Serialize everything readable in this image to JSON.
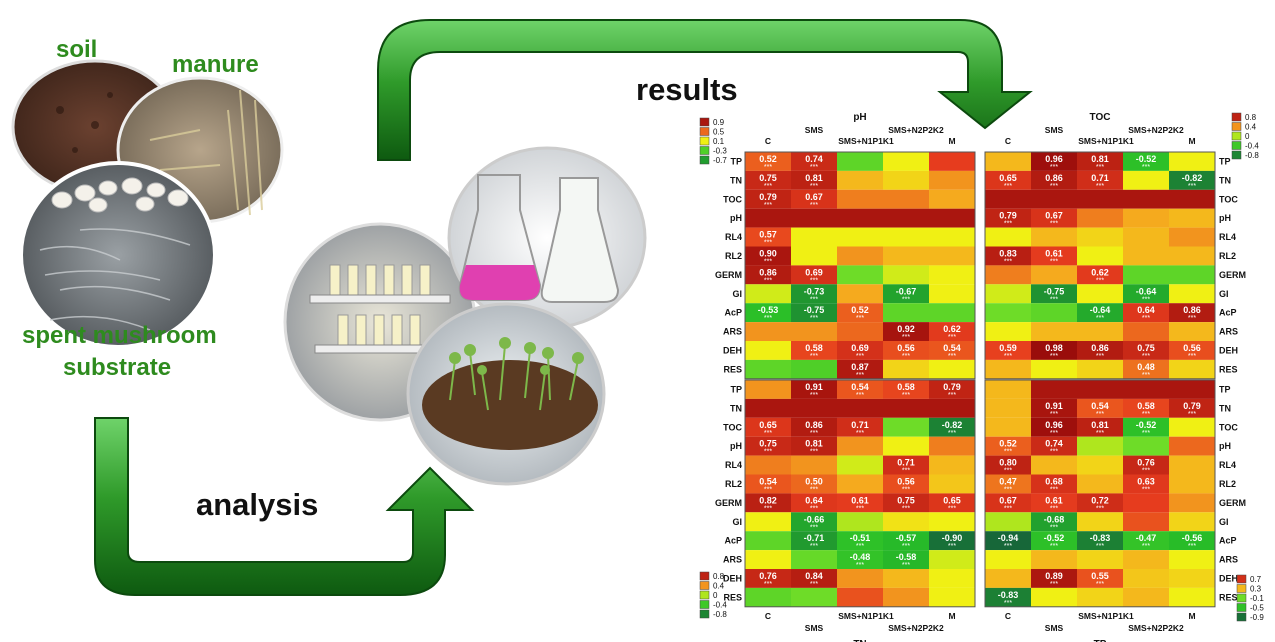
{
  "labels": {
    "soil": "soil",
    "manure": "manure",
    "sms_line1": "spent mushroom",
    "sms_line2": "substrate",
    "results": "results",
    "analysis": "analysis"
  },
  "chart_data": {
    "type": "heatmap",
    "rows": [
      "TP",
      "TN",
      "TOC",
      "pH",
      "RL4",
      "RL2",
      "GERM",
      "GI",
      "AcP",
      "ARS",
      "DEH",
      "RES"
    ],
    "columns": [
      "C",
      "SMS",
      "SMS+N1P1K1",
      "SMS+N2P2K2",
      "M"
    ],
    "panels": [
      {
        "title": "pH",
        "title_pos": "top",
        "legend": [
          0.9,
          0.5,
          0.1,
          -0.3,
          -0.7
        ],
        "legend_side": "top-left",
        "values": [
          [
            0.52,
            0.74,
            -0.2,
            0.1,
            0.6
          ],
          [
            0.75,
            0.81,
            0.3,
            0.2,
            0.4
          ],
          [
            0.79,
            0.67,
            0.45,
            0.45,
            0.35
          ],
          [
            0.9,
            0.9,
            0.9,
            0.9,
            0.9
          ],
          [
            0.57,
            0.1,
            0.1,
            0.1,
            0.1
          ],
          [
            0.9,
            0.1,
            0.4,
            0.3,
            0.3
          ],
          [
            0.86,
            0.69,
            -0.1,
            0.05,
            0.1
          ],
          [
            0.05,
            -0.73,
            0.35,
            -0.67,
            0.1
          ],
          [
            -0.53,
            -0.75,
            0.52,
            -0.2,
            -0.2
          ],
          [
            0.4,
            0.4,
            0.5,
            0.92,
            0.62
          ],
          [
            0.1,
            0.58,
            0.69,
            0.56,
            0.54
          ],
          [
            -0.2,
            -0.3,
            0.87,
            0.2,
            0.1
          ]
        ],
        "annotations": [
          [
            "0.52",
            "0.74",
            "",
            "",
            ""
          ],
          [
            "0.75",
            "0.81",
            "",
            "",
            ""
          ],
          [
            "0.79",
            "0.67",
            "",
            "",
            ""
          ],
          [
            "",
            "",
            "",
            "",
            ""
          ],
          [
            "0.57",
            "",
            "",
            "",
            ""
          ],
          [
            "0.90",
            "",
            "",
            "",
            ""
          ],
          [
            "0.86",
            "0.69",
            "",
            "",
            ""
          ],
          [
            "",
            "-0.73",
            "",
            "-0.67",
            ""
          ],
          [
            "-0.53",
            "-0.75",
            "0.52",
            "",
            ""
          ],
          [
            "",
            "",
            "",
            "0.92",
            "0.62"
          ],
          [
            "",
            "0.58",
            "0.69",
            "0.56",
            "0.54"
          ],
          [
            "",
            "",
            "0.87",
            "",
            ""
          ]
        ]
      },
      {
        "title": "TOC",
        "title_pos": "top",
        "legend": [
          0.8,
          0.4,
          0,
          -0.4,
          -0.8
        ],
        "legend_side": "top-right",
        "values": [
          [
            0.3,
            0.96,
            0.81,
            -0.52,
            0.1
          ],
          [
            0.65,
            0.86,
            0.71,
            0.1,
            -0.82
          ],
          [
            0.9,
            0.9,
            0.9,
            0.9,
            0.9
          ],
          [
            0.79,
            0.67,
            0.45,
            0.35,
            0.3
          ],
          [
            0.1,
            0.3,
            0.2,
            0.3,
            0.4
          ],
          [
            0.83,
            0.61,
            0.1,
            0.3,
            0.3
          ],
          [
            0.45,
            0.35,
            0.62,
            -0.2,
            -0.2
          ],
          [
            0.05,
            -0.75,
            0.1,
            -0.64,
            0.1
          ],
          [
            -0.1,
            -0.2,
            -0.64,
            0.64,
            0.86
          ],
          [
            0.1,
            0.3,
            0.3,
            0.5,
            0.3
          ],
          [
            0.59,
            0.98,
            0.86,
            0.75,
            0.56
          ],
          [
            0.3,
            0.1,
            0.2,
            0.48,
            0.2
          ]
        ],
        "annotations": [
          [
            "",
            "0.96",
            "0.81",
            "-0.52",
            ""
          ],
          [
            "0.65",
            "0.86",
            "0.71",
            "",
            "-0.82"
          ],
          [
            "",
            "",
            "",
            "",
            ""
          ],
          [
            "0.79",
            "0.67",
            "",
            "",
            ""
          ],
          [
            "",
            "",
            "",
            "",
            ""
          ],
          [
            "0.83",
            "0.61",
            "",
            "",
            ""
          ],
          [
            "",
            "",
            "0.62",
            "",
            ""
          ],
          [
            "",
            "-0.75",
            "",
            "-0.64",
            ""
          ],
          [
            "",
            "",
            "-0.64",
            "0.64",
            "0.86"
          ],
          [
            "",
            "",
            "",
            "",
            ""
          ],
          [
            "0.59",
            "0.98",
            "0.86",
            "0.75",
            "0.56"
          ],
          [
            "",
            "",
            "",
            "0.48",
            ""
          ]
        ]
      },
      {
        "title": "TN",
        "title_pos": "bottom",
        "legend": [
          0.8,
          0.4,
          0,
          -0.4,
          -0.8
        ],
        "legend_side": "bottom-left",
        "values": [
          [
            0.4,
            0.91,
            0.54,
            0.58,
            0.79
          ],
          [
            0.9,
            0.9,
            0.9,
            0.9,
            0.9
          ],
          [
            0.65,
            0.86,
            0.71,
            -0.1,
            -0.82
          ],
          [
            0.75,
            0.81,
            0.4,
            0.1,
            0.45
          ],
          [
            0.45,
            0.4,
            0.05,
            0.71,
            0.3
          ],
          [
            0.54,
            0.5,
            0.35,
            0.56,
            0.25
          ],
          [
            0.82,
            0.64,
            0.61,
            0.75,
            0.65
          ],
          [
            0.1,
            -0.66,
            0.0,
            0.15,
            0.1
          ],
          [
            -0.2,
            -0.71,
            -0.51,
            -0.57,
            -0.9
          ],
          [
            0.1,
            -0.15,
            -0.48,
            -0.58,
            0.05
          ],
          [
            0.76,
            0.84,
            0.4,
            0.3,
            0.1
          ],
          [
            -0.2,
            -0.1,
            0.55,
            0.4,
            0.1
          ]
        ],
        "annotations": [
          [
            "",
            "0.91",
            "0.54",
            "0.58",
            "0.79"
          ],
          [
            "",
            "",
            "",
            "",
            ""
          ],
          [
            "0.65",
            "0.86",
            "0.71",
            "",
            "-0.82"
          ],
          [
            "0.75",
            "0.81",
            "",
            "",
            ""
          ],
          [
            "",
            "",
            "",
            "0.71",
            ""
          ],
          [
            "0.54",
            "0.50",
            "",
            "0.56",
            ""
          ],
          [
            "0.82",
            "0.64",
            "0.61",
            "0.75",
            "0.65"
          ],
          [
            "",
            "-0.66",
            "",
            "",
            ""
          ],
          [
            "",
            "-0.71",
            "-0.51",
            "-0.57",
            "-0.90"
          ],
          [
            "",
            "",
            "-0.48",
            "-0.58",
            ""
          ],
          [
            "0.76",
            "0.84",
            "",
            "",
            ""
          ],
          [
            "",
            "",
            "",
            "",
            ""
          ]
        ]
      },
      {
        "title": "TP",
        "title_pos": "bottom",
        "legend": [
          0.7,
          0.3,
          -0.1,
          -0.5,
          -0.9
        ],
        "legend_side": "bottom-right",
        "values": [
          [
            0.3,
            0.9,
            0.9,
            0.9,
            0.9
          ],
          [
            0.3,
            0.91,
            0.54,
            0.58,
            0.79
          ],
          [
            0.3,
            0.96,
            0.81,
            -0.52,
            0.1
          ],
          [
            0.52,
            0.74,
            0.0,
            -0.1,
            0.5
          ],
          [
            0.8,
            0.3,
            0.2,
            0.76,
            0.3
          ],
          [
            0.47,
            0.68,
            0.3,
            0.63,
            0.3
          ],
          [
            0.67,
            0.61,
            0.72,
            0.6,
            0.4
          ],
          [
            0.0,
            -0.68,
            0.2,
            0.55,
            0.2
          ],
          [
            -0.94,
            -0.52,
            -0.83,
            -0.47,
            -0.56
          ],
          [
            0.1,
            0.3,
            0.2,
            0.3,
            0.1
          ],
          [
            0.3,
            0.89,
            0.55,
            0.25,
            0.2
          ],
          [
            -0.83,
            0.1,
            0.2,
            0.3,
            0.1
          ]
        ],
        "annotations": [
          [
            "",
            "",
            "",
            "",
            ""
          ],
          [
            "",
            "0.91",
            "0.54",
            "0.58",
            "0.79"
          ],
          [
            "",
            "0.96",
            "0.81",
            "-0.52",
            ""
          ],
          [
            "0.52",
            "0.74",
            "",
            "",
            ""
          ],
          [
            "0.80",
            "",
            "",
            "0.76",
            ""
          ],
          [
            "0.47",
            "0.68",
            "",
            "0.63",
            ""
          ],
          [
            "0.67",
            "0.61",
            "0.72",
            "",
            ""
          ],
          [
            "",
            "-0.68",
            "",
            "",
            ""
          ],
          [
            "-0.94",
            "-0.52",
            "-0.83",
            "-0.47",
            "-0.56"
          ],
          [
            "",
            "",
            "",
            "",
            ""
          ],
          [
            "",
            "0.89",
            "0.55",
            "",
            ""
          ],
          [
            "-0.83",
            "",
            "",
            "",
            ""
          ]
        ]
      }
    ]
  }
}
